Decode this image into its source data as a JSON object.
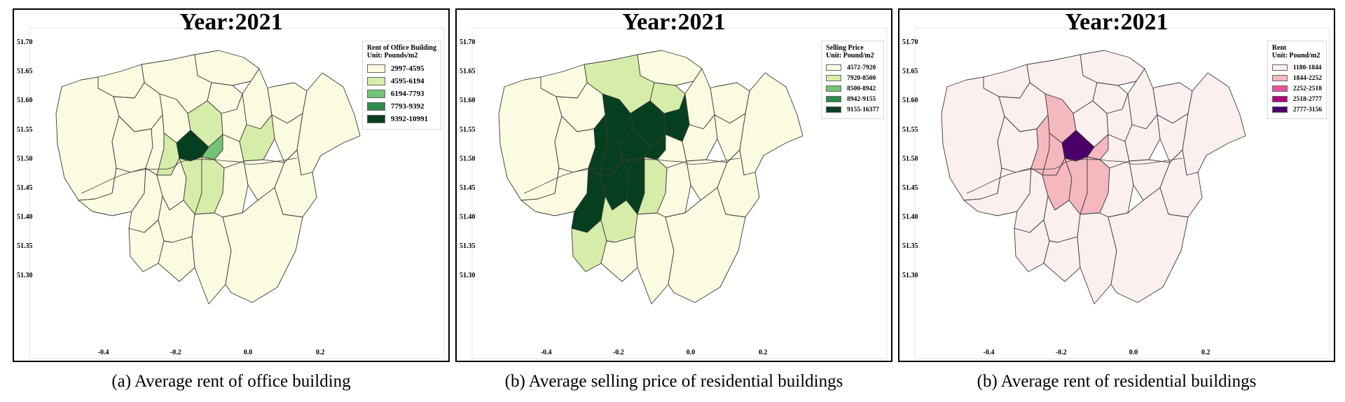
{
  "map_data": {
    "year": 2021,
    "y_ticks": [
      "51.70",
      "51.65",
      "51.60",
      "51.55",
      "51.50",
      "51.45",
      "51.40",
      "51.35",
      "51.30"
    ],
    "x_ticks": [
      "-0.4",
      "-0.2",
      "0.0",
      "0.2"
    ],
    "panels": [
      {
        "id": "a",
        "title": "Year:2021",
        "caption": "(a) Average rent of office building",
        "legend": {
          "title_lines": [
            "Rent of Office Building",
            "Unit: Pounds/m2"
          ],
          "classes": [
            {
              "label": "2997-4595",
              "color": "#fbfbe2"
            },
            {
              "label": "4595-6194",
              "color": "#d6edaa"
            },
            {
              "label": "6194-7793",
              "color": "#74c476"
            },
            {
              "label": "7793-9392",
              "color": "#2e8b4e"
            },
            {
              "label": "9392-10991",
              "color": "#063f20"
            }
          ]
        },
        "default_class": 0,
        "region_classes": {
          "westminster": 4,
          "city": 2,
          "kensington": 1,
          "lambeth": 1,
          "southwark": 1,
          "islington": 1,
          "newham": 1
        }
      },
      {
        "id": "b",
        "title": "Year:2021",
        "caption": "(b) Average selling price of residential buildings",
        "legend": {
          "title_lines": [
            "Selling Price",
            "Unit: Pound/m2"
          ],
          "classes": [
            {
              "label": "4572-7920",
              "color": "#fbfbe2"
            },
            {
              "label": "7920-8500",
              "color": "#d6edaa"
            },
            {
              "label": "8500-8942",
              "color": "#74c476"
            },
            {
              "label": "8942-9155",
              "color": "#2e8b4e"
            },
            {
              "label": "9155-16377",
              "color": "#063f20"
            }
          ]
        },
        "default_class": 0,
        "region_classes": {
          "westminster": 4,
          "city": 4,
          "camden": 4,
          "islington": 4,
          "hackney": 4,
          "kensington": 4,
          "hammersmith": 4,
          "wandsworth": 4,
          "richmond": 4,
          "lambeth": 4,
          "barnet": 1,
          "haringey": 1,
          "merton": 1,
          "kingston": 1,
          "southwark": 1
        }
      },
      {
        "id": "c",
        "title": "Year:2021",
        "caption": "(b) Average rent of residential buildings",
        "legend": {
          "title_lines": [
            "Rent",
            "Unit: Pound/m2"
          ],
          "classes": [
            {
              "label": "1180-1844",
              "color": "#fcf0ef"
            },
            {
              "label": "1844-2252",
              "color": "#f5b8bf"
            },
            {
              "label": "2252-2518",
              "color": "#e9559a"
            },
            {
              "label": "2518-2777",
              "color": "#b0037e"
            },
            {
              "label": "2777-3156",
              "color": "#4a0068"
            }
          ]
        },
        "default_class": 0,
        "region_classes": {
          "westminster": 4,
          "city": 1,
          "kensington": 1,
          "hammersmith": 1,
          "lambeth": 1,
          "southwark": 1,
          "camden": 1,
          "wandsworth": 1
        }
      }
    ]
  }
}
